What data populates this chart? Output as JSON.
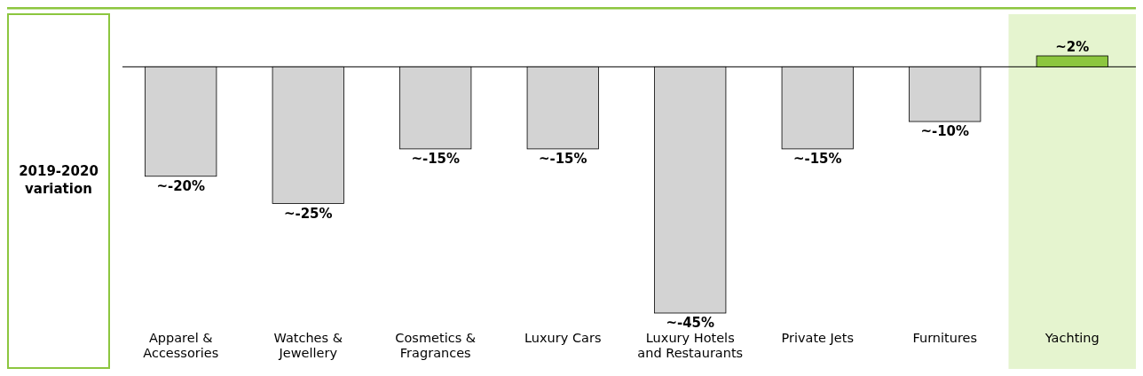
{
  "chart_data": {
    "type": "bar",
    "ylabel": "2019-2020 variation",
    "categories": [
      "Apparel & Accessories",
      "Watches & Jewellery",
      "Cosmetics & Fragrances",
      "Luxury Cars",
      "Luxury Hotels and Restaurants",
      "Private Jets",
      "Furnitures",
      "Yachting"
    ],
    "values": [
      -20,
      -25,
      -15,
      -15,
      -45,
      -15,
      -10,
      2
    ],
    "colors": [
      "#d3d3d3",
      "#d3d3d3",
      "#d3d3d3",
      "#d3d3d3",
      "#d3d3d3",
      "#d3d3d3",
      "#d3d3d3",
      "#8cc63f"
    ],
    "value_labels": [
      "~-20%",
      "~-25%",
      "~-15%",
      "~-15%",
      "~-45%",
      "~-15%",
      "~-10%",
      "~2%"
    ],
    "bands": [
      {
        "axis": "x",
        "from": "Yachting",
        "to": "Yachting",
        "color": "#e5f4cf"
      }
    ]
  }
}
